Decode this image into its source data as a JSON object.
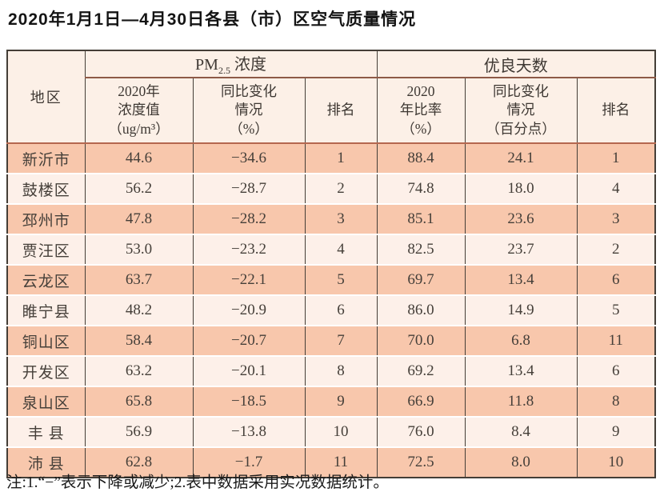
{
  "page": {
    "title": "2020年1月1日—4月30日各县（市）区空气质量情况",
    "footnote": "注:1.“−”表示下降或减少;2.表中数据采用实况数据统计。"
  },
  "colors": {
    "row_dark": "#f8c7ac",
    "row_light": "#fdf0e9",
    "header_bg": "#fcf0e7",
    "border_dark": "#443e37",
    "header_separator_red": "#b5674f"
  },
  "table": {
    "header": {
      "region": "地区",
      "pm_group": {
        "prefix": "PM",
        "sub": "2.5",
        "suffix": " 浓度"
      },
      "good_group": "优良天数",
      "pm_value": "2020年\n浓度值\n（ug/m³）",
      "pm_change": "同比变化\n情况\n（%）",
      "pm_rank": "排名",
      "good_rate": "2020\n年比率\n（%）",
      "good_change": "同比变化\n情况\n（百分点）",
      "good_rank": "排名"
    },
    "rows": [
      {
        "region": "新沂市",
        "pm_value": "44.6",
        "pm_change": "−34.6",
        "pm_rank": "1",
        "good_rate": "88.4",
        "good_change": "24.1",
        "good_rank": "1"
      },
      {
        "region": "鼓楼区",
        "pm_value": "56.2",
        "pm_change": "−28.7",
        "pm_rank": "2",
        "good_rate": "74.8",
        "good_change": "18.0",
        "good_rank": "4"
      },
      {
        "region": "邳州市",
        "pm_value": "47.8",
        "pm_change": "−28.2",
        "pm_rank": "3",
        "good_rate": "85.1",
        "good_change": "23.6",
        "good_rank": "3"
      },
      {
        "region": "贾汪区",
        "pm_value": "53.0",
        "pm_change": "−23.2",
        "pm_rank": "4",
        "good_rate": "82.5",
        "good_change": "23.7",
        "good_rank": "2"
      },
      {
        "region": "云龙区",
        "pm_value": "63.7",
        "pm_change": "−22.1",
        "pm_rank": "5",
        "good_rate": "69.7",
        "good_change": "13.4",
        "good_rank": "6"
      },
      {
        "region": "睢宁县",
        "pm_value": "48.2",
        "pm_change": "−20.9",
        "pm_rank": "6",
        "good_rate": "86.0",
        "good_change": "14.9",
        "good_rank": "5"
      },
      {
        "region": "铜山区",
        "pm_value": "58.4",
        "pm_change": "−20.7",
        "pm_rank": "7",
        "good_rate": "70.0",
        "good_change": "6.8",
        "good_rank": "11"
      },
      {
        "region": "开发区",
        "pm_value": "63.2",
        "pm_change": "−20.1",
        "pm_rank": "8",
        "good_rate": "69.2",
        "good_change": "13.4",
        "good_rank": "6"
      },
      {
        "region": "泉山区",
        "pm_value": "65.8",
        "pm_change": "−18.5",
        "pm_rank": "9",
        "good_rate": "66.9",
        "good_change": "11.8",
        "good_rank": "8"
      },
      {
        "region": "丰 县",
        "pm_value": "56.9",
        "pm_change": "−13.8",
        "pm_rank": "10",
        "good_rate": "76.0",
        "good_change": "8.4",
        "good_rank": "9"
      },
      {
        "region": "沛 县",
        "pm_value": "62.8",
        "pm_change": "−1.7",
        "pm_rank": "11",
        "good_rate": "72.5",
        "good_change": "8.0",
        "good_rank": "10"
      }
    ]
  }
}
